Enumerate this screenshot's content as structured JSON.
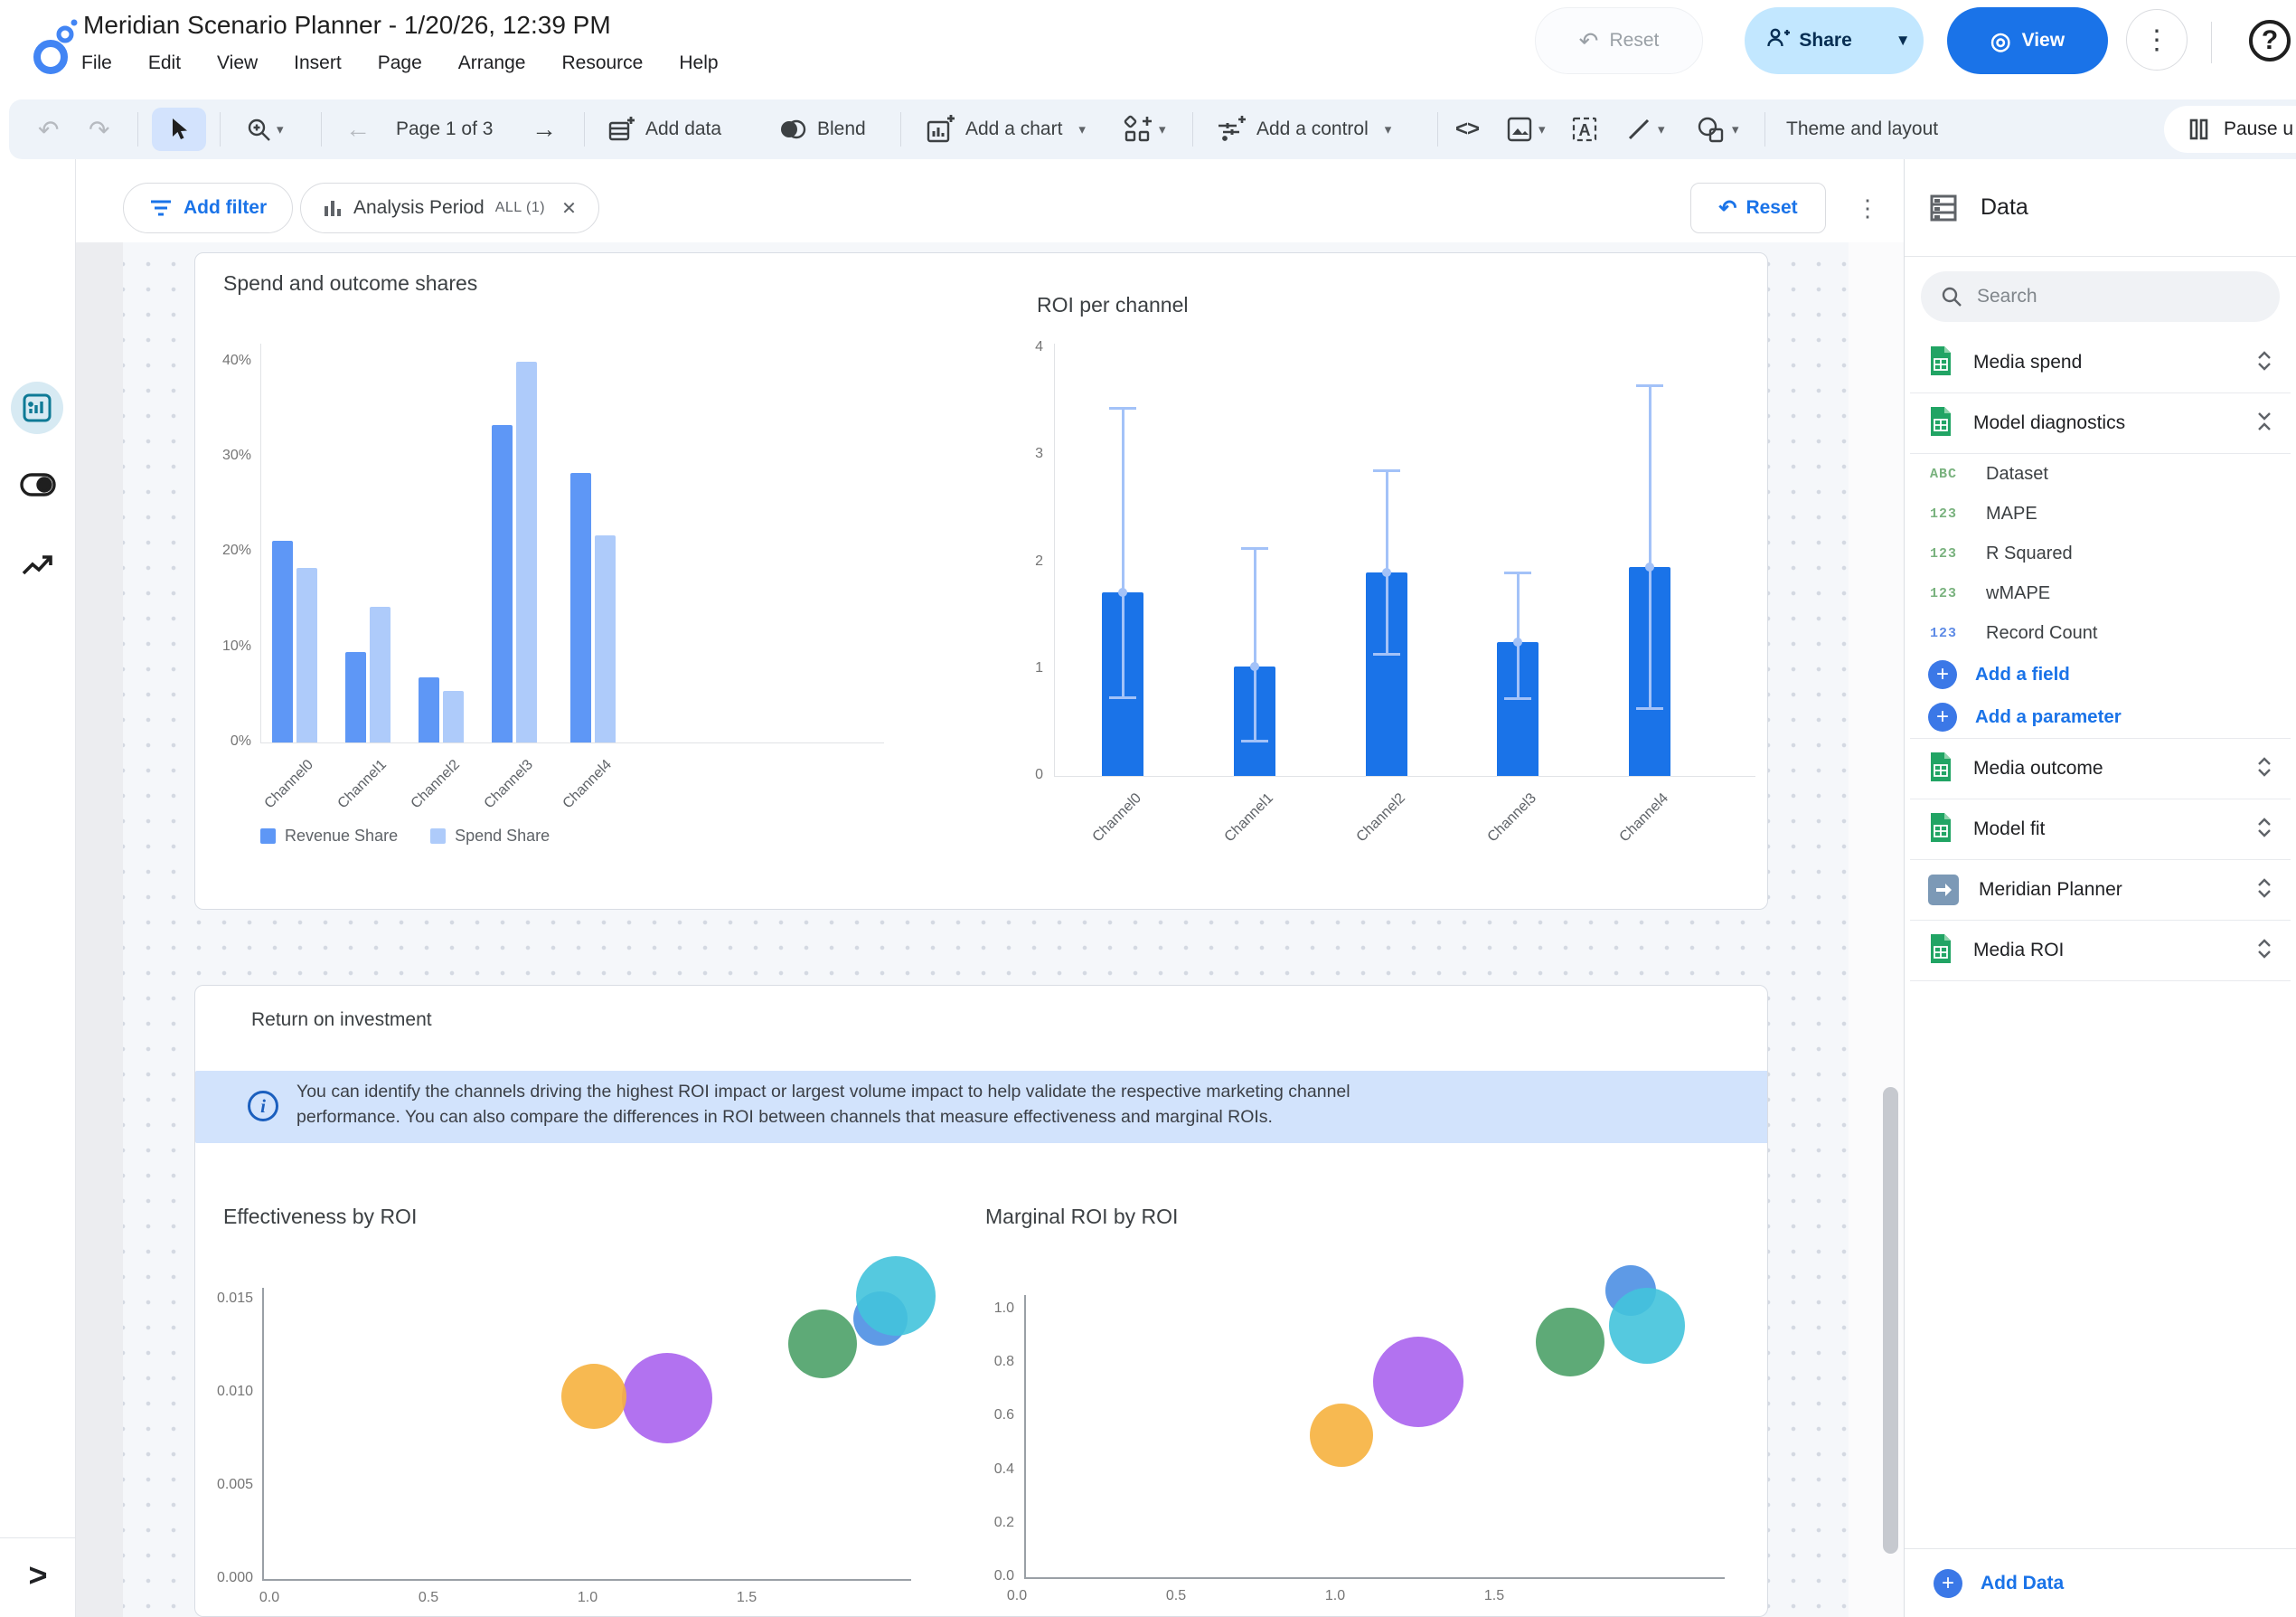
{
  "window_title": "Meridian Scenario Planner - 1/20/26, 12:39 PM",
  "menu_bar": [
    "File",
    "Edit",
    "View",
    "Insert",
    "Page",
    "Arrange",
    "Resource",
    "Help"
  ],
  "header_actions": {
    "reset": "Reset",
    "share": "Share",
    "view": "View"
  },
  "toolbar": {
    "page_nav": "Page 1 of 3",
    "add_data": "Add data",
    "blend": "Blend",
    "add_chart": "Add a chart",
    "add_control": "Add a control",
    "code": "<>",
    "theme_layout": "Theme and layout",
    "pause": "Pause u"
  },
  "filter_bar": {
    "add_filter": "Add filter",
    "chip_name": "Analysis Period",
    "chip_value": "ALL (1)",
    "reset": "Reset"
  },
  "icons": {
    "undo": "↶",
    "redo": "↷",
    "back": "←",
    "forward": "→",
    "kebab": "⋮",
    "caret": "▾",
    "close": "✕",
    "help": "?",
    "expand": ">"
  },
  "data_panel": {
    "title": "Data",
    "search_placeholder": "Search",
    "sources_top": [
      {
        "name": "Media spend",
        "icon": "sheets-icon",
        "state": "collapsed"
      },
      {
        "name": "Model diagnostics",
        "icon": "sheets-icon",
        "state": "expanded"
      }
    ],
    "fields": [
      {
        "name": "Dataset",
        "badge": "ABC",
        "color": "#79B27E"
      },
      {
        "name": "MAPE",
        "badge": "123",
        "color": "#79B27E"
      },
      {
        "name": "R Squared",
        "badge": "123",
        "color": "#79B27E"
      },
      {
        "name": "wMAPE",
        "badge": "123",
        "color": "#79B27E"
      },
      {
        "name": "Record Count",
        "badge": "123",
        "color": "#5E8BE6"
      }
    ],
    "field_actions": [
      "Add a field",
      "Add a parameter"
    ],
    "sources_bottom": [
      {
        "name": "Media outcome",
        "icon": "sheets-icon"
      },
      {
        "name": "Model fit",
        "icon": "sheets-icon"
      },
      {
        "name": "Meridian Planner",
        "icon": "blend-arrow-icon"
      },
      {
        "name": "Media ROI",
        "icon": "sheets-icon"
      }
    ],
    "add_data": "Add Data"
  },
  "report": {
    "section_title": "Return on investment",
    "info_line1": "You can identify the channels driving the highest ROI impact or largest volume impact to help validate the respective marketing channel",
    "info_line2": "performance. You can also compare the differences in ROI between channels that measure effectiveness and marginal ROIs."
  },
  "chart_data": [
    {
      "id": "spend_outcome",
      "type": "bar",
      "title": "Spend and outcome shares",
      "categories": [
        "Channel0",
        "Channel1",
        "Channel2",
        "Channel3",
        "Channel4"
      ],
      "series": [
        {
          "name": "Revenue Share",
          "color": "#5E97F6",
          "values": [
            21.2,
            9.5,
            6.8,
            33.3,
            28.3
          ]
        },
        {
          "name": "Spend Share",
          "color": "#AECBFA",
          "values": [
            18.3,
            14.2,
            5.4,
            40.0,
            21.7
          ]
        }
      ],
      "y_ticks": {
        "values": [
          0,
          10,
          20,
          30,
          40
        ],
        "labels": [
          "0%",
          "10%",
          "20%",
          "30%",
          "40%"
        ]
      },
      "ylim": [
        0,
        43
      ],
      "legend_position": "bottom"
    },
    {
      "id": "roi_per_channel",
      "type": "bar",
      "title": "ROI per channel",
      "categories": [
        "Channel0",
        "Channel1",
        "Channel2",
        "Channel3",
        "Channel4"
      ],
      "values": [
        1.72,
        1.02,
        1.9,
        1.25,
        1.95
      ],
      "error_low": [
        0.73,
        0.32,
        1.13,
        0.72,
        0.63
      ],
      "error_high": [
        3.45,
        2.14,
        2.87,
        1.91,
        3.66
      ],
      "bar_color": "#1A73E8",
      "error_color": "#A3C2F8",
      "y_ticks": {
        "values": [
          0,
          1,
          2,
          3,
          4
        ],
        "labels": [
          "0",
          "1",
          "2",
          "3",
          "4"
        ]
      },
      "ylim": [
        0,
        4.2
      ]
    },
    {
      "id": "effectiveness_by_roi",
      "type": "scatter",
      "title": "Effectiveness by ROI",
      "x_ticks": {
        "values": [
          0,
          0.5,
          1,
          1.5
        ],
        "labels": [
          "0.0",
          "0.5",
          "1.0",
          "1.5"
        ]
      },
      "y_ticks": {
        "values": [
          0,
          0.005,
          0.01,
          0.015
        ],
        "labels": [
          "0.000",
          "0.005",
          "0.010",
          "0.015"
        ]
      },
      "xlim": [
        0,
        2.05
      ],
      "ylim": [
        0,
        0.0165
      ],
      "points": [
        {
          "x": 1.25,
          "y": 0.0097,
          "r": 50,
          "color": "#AA63EE"
        },
        {
          "x": 1.02,
          "y": 0.0098,
          "r": 36,
          "color": "#F6B13E"
        },
        {
          "x": 1.74,
          "y": 0.0126,
          "r": 38,
          "color": "#4CA168"
        },
        {
          "x": 1.92,
          "y": 0.014,
          "r": 30,
          "color": "#4D8FE3"
        },
        {
          "x": 1.97,
          "y": 0.0152,
          "r": 44,
          "color": "#43C3DB"
        }
      ]
    },
    {
      "id": "marginal_roi_by_roi",
      "type": "scatter",
      "title": "Marginal ROI by ROI",
      "x_ticks": {
        "values": [
          0,
          0.5,
          1,
          1.5
        ],
        "labels": [
          "0.0",
          "0.5",
          "1.0",
          "1.5"
        ]
      },
      "y_ticks": {
        "values": [
          0,
          0.2,
          0.4,
          0.6,
          0.8,
          1
        ],
        "labels": [
          "0.0",
          "0.2",
          "0.4",
          "0.6",
          "0.8",
          "1.0"
        ]
      },
      "xlim": [
        0,
        2.05
      ],
      "ylim": [
        0,
        1.12
      ],
      "points": [
        {
          "x": 1.02,
          "y": 0.53,
          "r": 35,
          "color": "#F6B13E"
        },
        {
          "x": 1.26,
          "y": 0.73,
          "r": 50,
          "color": "#AA63EE"
        },
        {
          "x": 1.74,
          "y": 0.88,
          "r": 38,
          "color": "#4CA168"
        },
        {
          "x": 1.93,
          "y": 1.07,
          "r": 28,
          "color": "#4D8FE3"
        },
        {
          "x": 1.98,
          "y": 0.94,
          "r": 42,
          "color": "#43C3DB"
        }
      ]
    }
  ]
}
